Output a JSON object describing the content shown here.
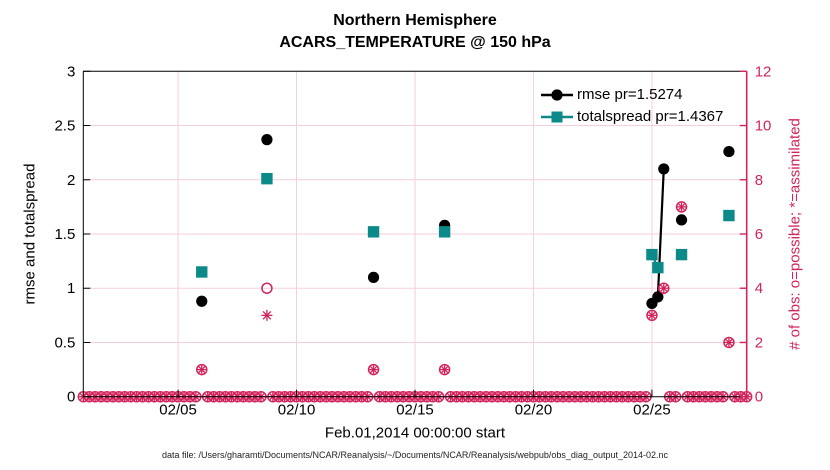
{
  "figure": {
    "title": "Northern Hemisphere",
    "subtitle": "ACARS_TEMPERATURE @ 150 hPa",
    "footer": "data file: /Users/gharamti/Documents/NCAR/Reanalysis/~/Documents/NCAR/Reanalysis/webpub/obs_diag_output_2014-02.nc"
  },
  "chart_data": {
    "type": "scatter",
    "title": "Northern Hemisphere",
    "subtitle": "ACARS_TEMPERATURE @ 150 hPa",
    "xlabel": "Feb.01,2014 00:00:00 start",
    "ylabel_left": "rmse and totalspread",
    "ylabel_right": "# of obs: o=possible; *=assimilated",
    "x_axis": {
      "domain_day_of_feb": [
        1,
        29
      ],
      "ticks": [
        {
          "day": 5,
          "label": "02/05"
        },
        {
          "day": 10,
          "label": "02/10"
        },
        {
          "day": 15,
          "label": "02/15"
        },
        {
          "day": 20,
          "label": "02/20"
        },
        {
          "day": 25,
          "label": "02/25"
        }
      ],
      "grid": true
    },
    "y_axis_left": {
      "domain": [
        0,
        3
      ],
      "ticks": [
        0,
        0.5,
        1,
        1.5,
        2,
        2.5,
        3
      ],
      "tick_labels": [
        "0",
        "0.5",
        "1",
        "1.5",
        "2",
        "2.5",
        "3"
      ],
      "grid": true
    },
    "y_axis_right": {
      "domain": [
        0,
        12
      ],
      "ticks": [
        0,
        2,
        4,
        6,
        8,
        10,
        12
      ],
      "tick_labels": [
        "0",
        "2",
        "4",
        "6",
        "8",
        "10",
        "12"
      ]
    },
    "legend": {
      "position": "top-right-inside",
      "items": [
        {
          "label": "rmse pr=1.5274",
          "marker": "filled-circle",
          "color": "#000000"
        },
        {
          "label": "totalspread pr=1.4367",
          "marker": "filled-square",
          "color": "#0c8a8a"
        }
      ]
    },
    "series": [
      {
        "name": "rmse",
        "axis": "left",
        "color": "#000000",
        "marker": "filled-circle",
        "points": [
          {
            "day": 6.0,
            "value": 0.88
          },
          {
            "day": 8.75,
            "value": 2.37
          },
          {
            "day": 13.25,
            "value": 1.1
          },
          {
            "day": 16.25,
            "value": 1.58
          },
          {
            "day": 25.0,
            "value": 0.86
          },
          {
            "day": 25.25,
            "value": 0.92
          },
          {
            "day": 25.5,
            "value": 2.1
          },
          {
            "day": 26.25,
            "value": 1.63
          },
          {
            "day": 28.25,
            "value": 2.26
          }
        ],
        "line_segments": [
          [
            {
              "day": 25.0,
              "value": 0.86
            },
            {
              "day": 25.25,
              "value": 0.92
            },
            {
              "day": 25.5,
              "value": 2.1
            }
          ]
        ]
      },
      {
        "name": "totalspread",
        "axis": "left",
        "color": "#0c8a8a",
        "marker": "filled-square",
        "points": [
          {
            "day": 6.0,
            "value": 1.15
          },
          {
            "day": 8.75,
            "value": 2.01
          },
          {
            "day": 13.25,
            "value": 1.52
          },
          {
            "day": 16.25,
            "value": 1.52
          },
          {
            "day": 25.0,
            "value": 1.31
          },
          {
            "day": 25.25,
            "value": 1.19
          },
          {
            "day": 26.25,
            "value": 1.31
          },
          {
            "day": 28.25,
            "value": 1.67
          }
        ],
        "line_segments": [
          [
            {
              "day": 25.0,
              "value": 1.31
            },
            {
              "day": 25.25,
              "value": 1.19
            }
          ]
        ]
      },
      {
        "name": "possible_obs",
        "axis": "right",
        "color": "#d2255c",
        "marker": "open-circle",
        "points": [
          {
            "day": 8.75,
            "count": 4
          }
        ]
      },
      {
        "name": "assimilated_obs",
        "axis": "right",
        "color": "#d2255c",
        "marker": "asterisk",
        "points": [
          {
            "day": 8.75,
            "count": 3
          }
        ]
      },
      {
        "name": "possible_and_assimilated_obs",
        "axis": "right",
        "color": "#d2255c",
        "marker": "circled-asterisk",
        "points": [
          {
            "day": 6.0,
            "count": 1
          },
          {
            "day": 13.25,
            "count": 1
          },
          {
            "day": 16.25,
            "count": 1
          },
          {
            "day": 25.0,
            "count": 3
          },
          {
            "day": 25.5,
            "count": 4
          },
          {
            "day": 26.25,
            "count": 7
          },
          {
            "day": 28.25,
            "count": 2
          }
        ]
      }
    ],
    "zero_obs_row": {
      "axis": "right",
      "value": 0,
      "marker": "circled-asterisk",
      "color": "#d2255c",
      "start_day": 1.0,
      "end_day": 29.0,
      "step_days": 0.25,
      "exclude_days": [
        6.0,
        8.75,
        13.25,
        16.25,
        25.0,
        25.25,
        25.5,
        26.25,
        28.25
      ]
    },
    "colors": {
      "rmse": "#000000",
      "totalspread": "#0c8a8a",
      "obs_accent": "#d2255c",
      "grid": "#f4cfdb",
      "axis_left": "#000000",
      "axis_right": "#d2255c"
    }
  }
}
